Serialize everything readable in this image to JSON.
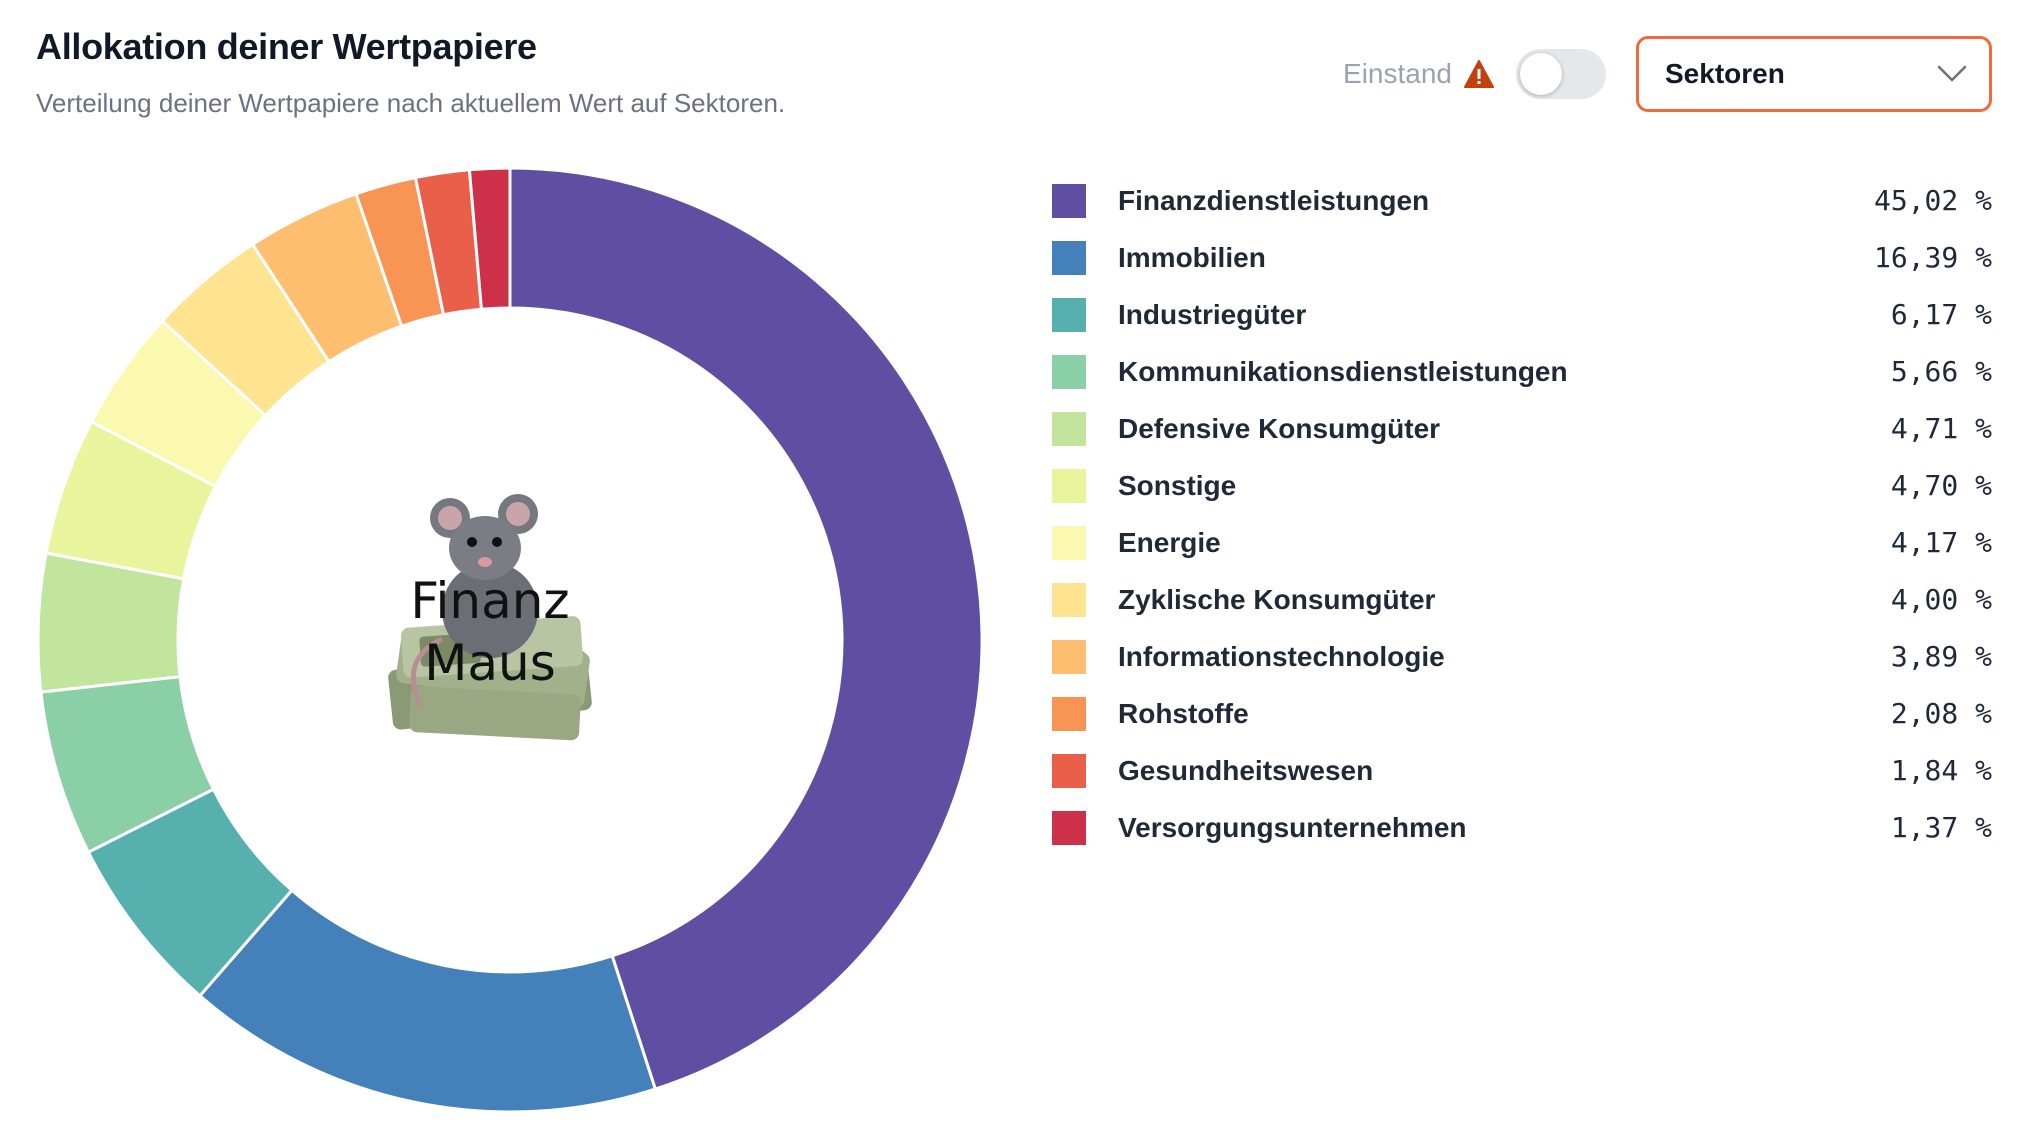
{
  "header": {
    "title": "Allokation deiner Wertpapiere",
    "subtitle": "Verteilung deiner Wertpapiere nach aktuellem Wert auf Sektoren."
  },
  "controls": {
    "einstand_label": "Einstand",
    "einstand_toggle_on": false,
    "warning_icon": "warning-triangle-icon",
    "select_value": "Sektoren"
  },
  "colors": {
    "accent": "#f06b3c",
    "warning": "#c2410c"
  },
  "logo": {
    "text_line1": "Finanz",
    "text_line2": "Maus"
  },
  "chart_data": {
    "type": "pie",
    "style": "donut",
    "categories": [
      "Finanzdienstleistungen",
      "Immobilien",
      "Industriegüter",
      "Kommunikationsdienstleistungen",
      "Defensive Konsumgüter",
      "Sonstige",
      "Energie",
      "Zyklische Konsumgüter",
      "Informationstechnologie",
      "Rohstoffe",
      "Gesundheitswesen",
      "Versorgungsunternehmen"
    ],
    "values": [
      45.02,
      16.39,
      6.17,
      5.66,
      4.71,
      4.7,
      4.17,
      4.0,
      3.89,
      2.08,
      1.84,
      1.37
    ],
    "value_labels": [
      "45,02 %",
      "16,39 %",
      "6,17 %",
      "5,66 %",
      "4,71 %",
      "4,70 %",
      "4,17 %",
      "4,00 %",
      "3,89 %",
      "2,08 %",
      "1,84 %",
      "1,37 %"
    ],
    "colors": [
      "#5e4fa2",
      "#4480b9",
      "#56b0ad",
      "#8acfa5",
      "#c1e59c",
      "#e9f59d",
      "#fbf8b0",
      "#fee491",
      "#fdbf6f",
      "#f89555",
      "#ea5f4a",
      "#cc3149"
    ],
    "legend_position": "right"
  }
}
